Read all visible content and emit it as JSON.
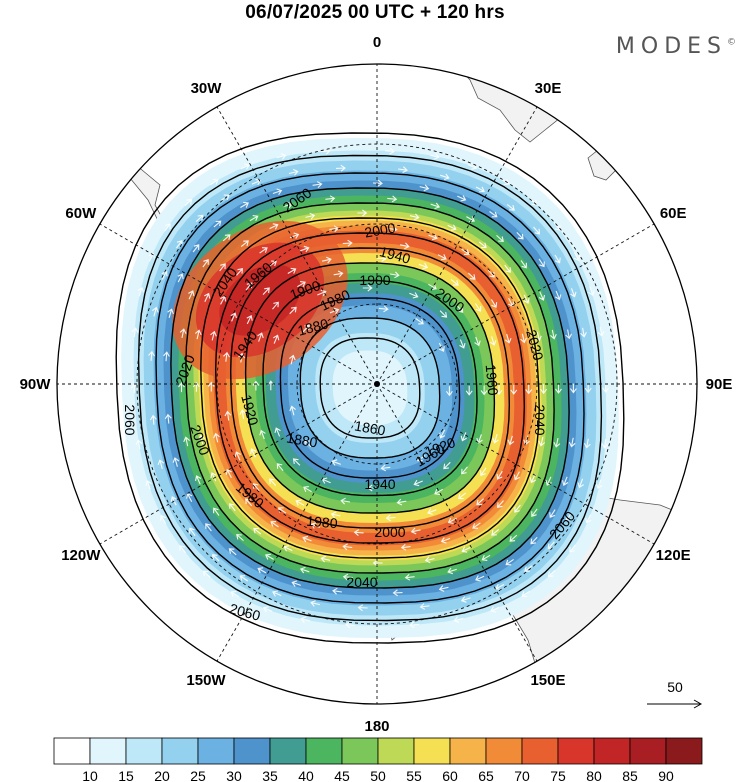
{
  "title": "06/07/2025  00 UTC  + 120 hrs",
  "brand": "MODES",
  "brand_mark": "©",
  "meridians": [
    {
      "label": "0",
      "bearing": 0
    },
    {
      "label": "30E",
      "bearing": 30
    },
    {
      "label": "60E",
      "bearing": 60
    },
    {
      "label": "90E",
      "bearing": 90
    },
    {
      "label": "120E",
      "bearing": 120
    },
    {
      "label": "150E",
      "bearing": 150
    },
    {
      "label": "180",
      "bearing": 180
    },
    {
      "label": "150W",
      "bearing": 210
    },
    {
      "label": "120W",
      "bearing": 240
    },
    {
      "label": "90W",
      "bearing": 270
    },
    {
      "label": "60W",
      "bearing": 300
    },
    {
      "label": "30W",
      "bearing": 330
    }
  ],
  "wind_speed_bands": [
    {
      "min": 10,
      "color": "#e1f5fc"
    },
    {
      "min": 15,
      "color": "#bee8f8"
    },
    {
      "min": 20,
      "color": "#94d1ef"
    },
    {
      "min": 25,
      "color": "#6bb2e3"
    },
    {
      "min": 30,
      "color": "#4f93cc"
    },
    {
      "min": 35,
      "color": "#419c91"
    },
    {
      "min": 40,
      "color": "#4cb560"
    },
    {
      "min": 45,
      "color": "#7bc759"
    },
    {
      "min": 50,
      "color": "#bdd955"
    },
    {
      "min": 55,
      "color": "#f4e052"
    },
    {
      "min": 60,
      "color": "#f6b34a"
    },
    {
      "min": 65,
      "color": "#f28b38"
    },
    {
      "min": 70,
      "color": "#e86030"
    },
    {
      "min": 75,
      "color": "#d8352b"
    },
    {
      "min": 80,
      "color": "#c22525"
    },
    {
      "min": 85,
      "color": "#a81e22"
    },
    {
      "min": 90,
      "color": "#8a1a1c"
    }
  ],
  "colorbar_ticks": [
    "10",
    "15",
    "20",
    "25",
    "30",
    "35",
    "40",
    "45",
    "50",
    "55",
    "60",
    "65",
    "70",
    "75",
    "80",
    "85",
    "90"
  ],
  "height_contour_labels": [
    "2060",
    "2060",
    "2060",
    "2060",
    "2040",
    "2040",
    "2040",
    "2020",
    "2020",
    "2000",
    "2000",
    "2000",
    "2000",
    "1980",
    "1980",
    "1980",
    "1960",
    "1960",
    "1960",
    "1940",
    "1940",
    "1940",
    "1920",
    "1920",
    "1900",
    "1900",
    "1880",
    "1880",
    "1860"
  ],
  "vector_key_label": "50"
}
